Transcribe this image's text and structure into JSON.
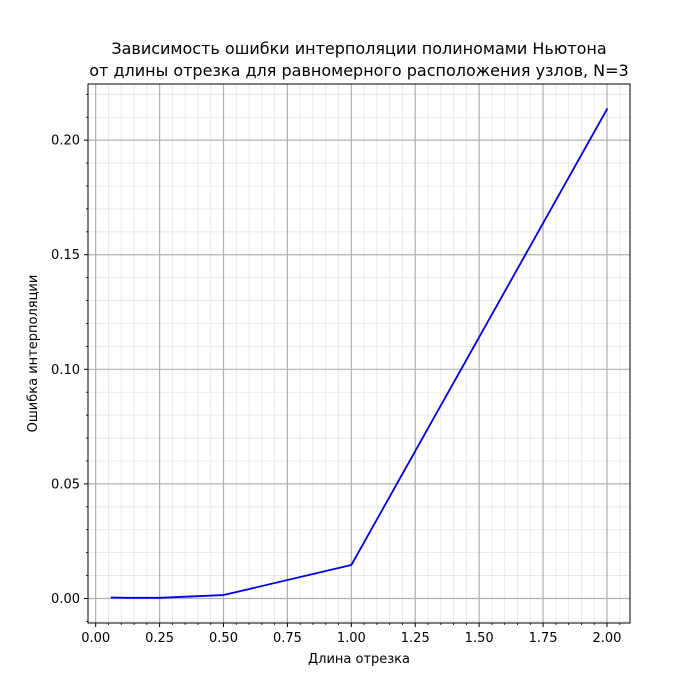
{
  "chart_data": {
    "type": "line",
    "title_lines": [
      "Зависимость ошибки интерполяции полиномами Ньютона",
      "от длины отрезка для равномерного расположения узлов, N=3"
    ],
    "xlabel": "Длина отрезка",
    "ylabel": "Ошибка интерполяции",
    "xlim": [
      -0.03,
      2.09
    ],
    "ylim": [
      -0.0107,
      0.2245
    ],
    "x_ticks": [
      0.0,
      0.25,
      0.5,
      0.75,
      1.0,
      1.25,
      1.5,
      1.75,
      2.0
    ],
    "x_tick_labels": [
      "0.00",
      "0.25",
      "0.50",
      "0.75",
      "1.00",
      "1.25",
      "1.50",
      "1.75",
      "2.00"
    ],
    "y_ticks": [
      0.0,
      0.05,
      0.1,
      0.15,
      0.2
    ],
    "y_tick_labels": [
      "0.00",
      "0.05",
      "0.10",
      "0.15",
      "0.20"
    ],
    "x_minor_step": 0.05,
    "y_minor_step": 0.01,
    "grid": true,
    "series": [
      {
        "color": "#0000ee",
        "x": [
          0.0625,
          0.125,
          0.25,
          0.5,
          1.0,
          2.0
        ],
        "y": [
          0.0004,
          0.0003,
          0.0003,
          0.0015,
          0.0146,
          0.2135
        ]
      }
    ]
  }
}
